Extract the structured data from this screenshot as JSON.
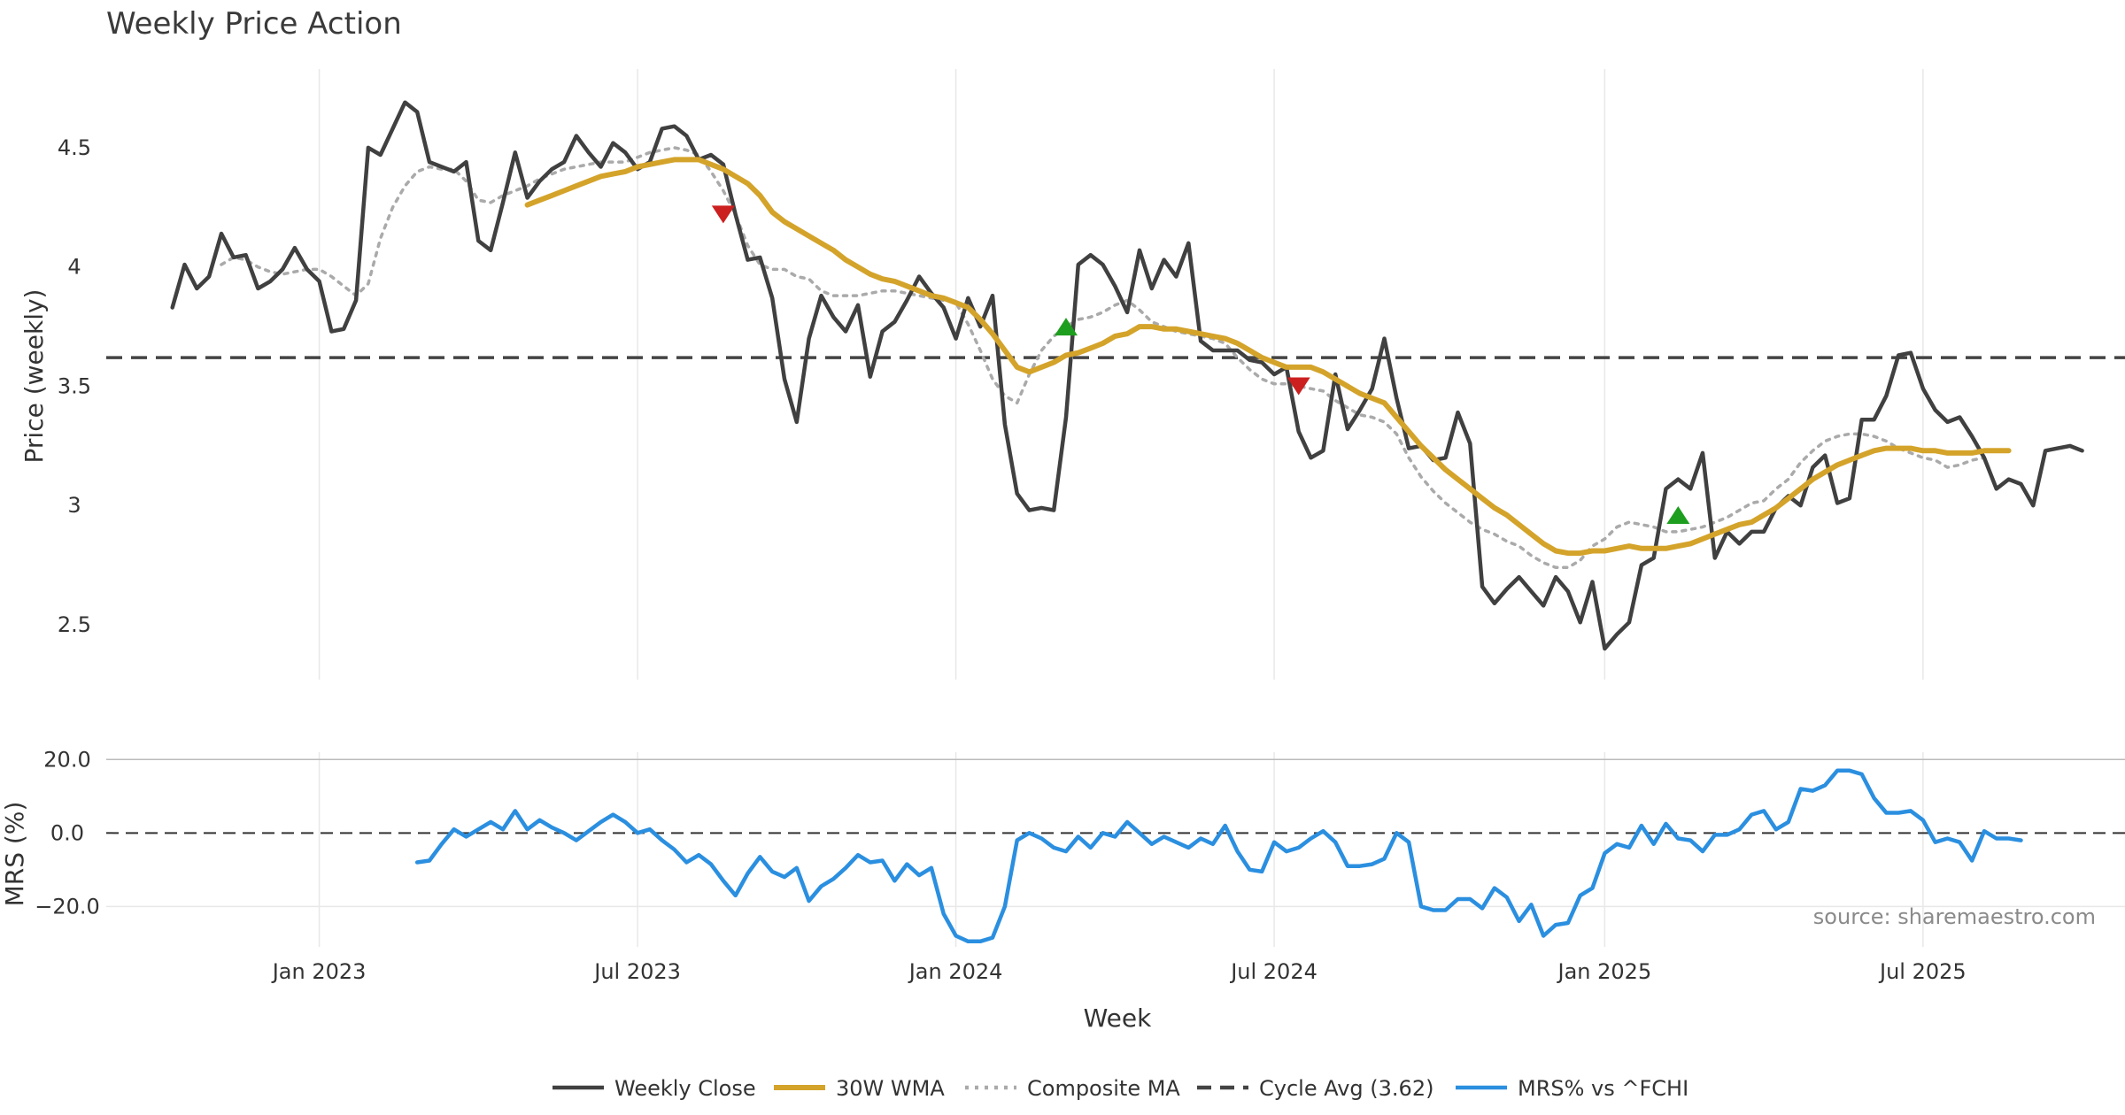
{
  "chart_data": {
    "type": "line",
    "title": "Weekly Price Action",
    "xlabel": "Week",
    "source": "source: sharemaestro.com",
    "colors": {
      "weekly_close": "#404040",
      "wma": "#d4a32a",
      "composite": "#aaaaaa",
      "cycle": "#444444",
      "mrs": "#2b8fe0",
      "sell": "#cc1f1f",
      "buy": "#1e9e1e"
    },
    "x_ticks": [
      {
        "week": 12,
        "label": "Jan 2023"
      },
      {
        "week": 38,
        "label": "Jul 2023"
      },
      {
        "week": 64,
        "label": "Jan 2024"
      },
      {
        "week": 90,
        "label": "Jul 2024"
      },
      {
        "week": 117,
        "label": "Jan 2025"
      },
      {
        "week": 143,
        "label": "Jul 2025"
      }
    ],
    "x_range": [
      -5.4,
      159.5
    ],
    "price_panel": {
      "ylabel": "Price (weekly)",
      "ylim": [
        2.27,
        4.83
      ],
      "yticks": [
        {
          "value": 2.5,
          "label": "2.5"
        },
        {
          "value": 3.0,
          "label": "3"
        },
        {
          "value": 3.5,
          "label": "3.5"
        },
        {
          "value": 4.0,
          "label": "4"
        },
        {
          "value": 4.5,
          "label": "4.5"
        }
      ],
      "cycle_avg": 3.62,
      "weekly_close": [
        3.83,
        4.01,
        3.91,
        3.96,
        4.14,
        4.04,
        4.05,
        3.91,
        3.94,
        3.99,
        4.08,
        3.99,
        3.94,
        3.73,
        3.74,
        3.86,
        4.5,
        4.47,
        4.58,
        4.69,
        4.65,
        4.44,
        4.42,
        4.4,
        4.44,
        4.11,
        4.07,
        4.27,
        4.48,
        4.29,
        4.36,
        4.41,
        4.44,
        4.55,
        4.48,
        4.42,
        4.52,
        4.48,
        4.41,
        4.44,
        4.58,
        4.59,
        4.55,
        4.45,
        4.47,
        4.43,
        4.22,
        4.03,
        4.04,
        3.87,
        3.53,
        3.35,
        3.7,
        3.88,
        3.79,
        3.73,
        3.84,
        3.54,
        3.73,
        3.77,
        3.86,
        3.96,
        3.89,
        3.83,
        3.7,
        3.87,
        3.75,
        3.88,
        3.34,
        3.05,
        2.98,
        2.99,
        2.98,
        3.37,
        4.01,
        4.05,
        4.01,
        3.92,
        3.81,
        4.07,
        3.91,
        4.03,
        3.96,
        4.1,
        3.69,
        3.65,
        3.65,
        3.65,
        3.61,
        3.6,
        3.55,
        3.58,
        3.31,
        3.2,
        3.23,
        3.55,
        3.32,
        3.4,
        3.49,
        3.7,
        3.45,
        3.24,
        3.25,
        3.19,
        3.2,
        3.39,
        3.26,
        2.66,
        2.59,
        2.65,
        2.7,
        2.64,
        2.58,
        2.7,
        2.64,
        2.51,
        2.68,
        2.4,
        2.46,
        2.51,
        2.75,
        2.78,
        3.07,
        3.11,
        3.07,
        3.22,
        2.78,
        2.89,
        2.84,
        2.89,
        2.89,
        2.99,
        3.04,
        3.0,
        3.16,
        3.21,
        3.01,
        3.03,
        3.36,
        3.36,
        3.46,
        3.63,
        3.64,
        3.49,
        3.4,
        3.35,
        3.37,
        3.29,
        3.2,
        3.07,
        3.11,
        3.09,
        3.0,
        3.23,
        3.24,
        3.25,
        3.23
      ],
      "wma_start": 29,
      "wma": [
        4.26,
        4.28,
        4.3,
        4.32,
        4.34,
        4.36,
        4.38,
        4.39,
        4.4,
        4.42,
        4.43,
        4.44,
        4.45,
        4.45,
        4.45,
        4.43,
        4.41,
        4.38,
        4.35,
        4.3,
        4.23,
        4.19,
        4.16,
        4.13,
        4.1,
        4.07,
        4.03,
        4.0,
        3.97,
        3.95,
        3.94,
        3.92,
        3.9,
        3.88,
        3.87,
        3.85,
        3.83,
        3.78,
        3.72,
        3.65,
        3.58,
        3.56,
        3.58,
        3.6,
        3.63,
        3.64,
        3.66,
        3.68,
        3.71,
        3.72,
        3.75,
        3.75,
        3.74,
        3.74,
        3.73,
        3.72,
        3.71,
        3.7,
        3.68,
        3.65,
        3.62,
        3.6,
        3.58,
        3.58,
        3.58,
        3.56,
        3.53,
        3.5,
        3.47,
        3.45,
        3.43,
        3.37,
        3.31,
        3.25,
        3.2,
        3.15,
        3.11,
        3.07,
        3.03,
        2.99,
        2.96,
        2.92,
        2.88,
        2.84,
        2.81,
        2.8,
        2.8,
        2.81,
        2.81,
        2.82,
        2.83,
        2.82,
        2.82,
        2.82,
        2.83,
        2.84,
        2.86,
        2.88,
        2.9,
        2.92,
        2.93,
        2.96,
        2.99,
        3.03,
        3.07,
        3.11,
        3.14,
        3.17,
        3.19,
        3.21,
        3.23,
        3.24,
        3.24,
        3.24,
        3.23,
        3.23,
        3.22,
        3.22,
        3.22,
        3.23,
        3.23,
        3.23
      ],
      "composite_start": 4,
      "composite": [
        4.01,
        4.04,
        4.03,
        4.0,
        3.98,
        3.97,
        3.98,
        3.99,
        3.99,
        3.96,
        3.92,
        3.88,
        3.93,
        4.12,
        4.25,
        4.34,
        4.4,
        4.42,
        4.41,
        4.41,
        4.36,
        4.28,
        4.27,
        4.3,
        4.32,
        4.34,
        4.37,
        4.39,
        4.41,
        4.42,
        4.43,
        4.44,
        4.44,
        4.44,
        4.46,
        4.48,
        4.49,
        4.5,
        4.49,
        4.47,
        4.4,
        4.32,
        4.22,
        4.09,
        4.01,
        3.99,
        3.99,
        3.96,
        3.95,
        3.9,
        3.88,
        3.88,
        3.88,
        3.89,
        3.9,
        3.9,
        3.89,
        3.88,
        3.87,
        3.86,
        3.85,
        3.76,
        3.65,
        3.53,
        3.46,
        3.43,
        3.55,
        3.65,
        3.71,
        3.75,
        3.78,
        3.79,
        3.81,
        3.84,
        3.86,
        3.82,
        3.77,
        3.75,
        3.73,
        3.72,
        3.71,
        3.7,
        3.68,
        3.62,
        3.57,
        3.53,
        3.51,
        3.51,
        3.5,
        3.49,
        3.48,
        3.44,
        3.41,
        3.38,
        3.37,
        3.35,
        3.3,
        3.2,
        3.12,
        3.06,
        3.01,
        2.97,
        2.93,
        2.9,
        2.88,
        2.85,
        2.83,
        2.79,
        2.76,
        2.74,
        2.74,
        2.77,
        2.83,
        2.86,
        2.91,
        2.93,
        2.92,
        2.91,
        2.89,
        2.89,
        2.9,
        2.91,
        2.93,
        2.95,
        2.98,
        3.01,
        3.02,
        3.07,
        3.11,
        3.18,
        3.23,
        3.27,
        3.29,
        3.3,
        3.3,
        3.29,
        3.27,
        3.24,
        3.22,
        3.2,
        3.19,
        3.16,
        3.17,
        3.19,
        3.2
      ],
      "sell_markers": [
        {
          "week": 45,
          "value": 4.22
        },
        {
          "week": 92,
          "value": 3.5
        }
      ],
      "buy_markers": [
        {
          "week": 73,
          "value": 3.75
        },
        {
          "week": 123,
          "value": 2.96
        }
      ]
    },
    "mrs_panel": {
      "ylabel": "MRS (%)",
      "ylim": [
        -31,
        22
      ],
      "yticks": [
        {
          "value": 20,
          "label": "20.0"
        },
        {
          "value": 0,
          "label": "0.0"
        },
        {
          "value": -20,
          "label": "−20.0"
        }
      ],
      "mrs_start": 20,
      "mrs": [
        -8,
        -7.5,
        -3,
        1,
        -1,
        1,
        3,
        1,
        6,
        1,
        3.5,
        1.5,
        0,
        -2,
        0.5,
        3,
        5,
        3,
        0,
        1,
        -2,
        -4.5,
        -8,
        -6,
        -8.5,
        -13,
        -17,
        -11,
        -6.5,
        -10.5,
        -12,
        -9.5,
        -18.5,
        -14.5,
        -12.5,
        -9.5,
        -6,
        -8,
        -7.5,
        -13,
        -8.5,
        -11.5,
        -9.5,
        -22,
        -28,
        -29.5,
        -29.5,
        -28.5,
        -20,
        -2,
        0,
        -1.5,
        -4,
        -5,
        -1,
        -4,
        0,
        -1,
        3,
        0,
        -3,
        -1,
        -2.5,
        -4,
        -1.5,
        -3,
        2,
        -5,
        -10,
        -10.5,
        -2.5,
        -5,
        -4,
        -1.5,
        0.5,
        -2.5,
        -9,
        -9,
        -8.5,
        -7,
        0,
        -2.5,
        -20,
        -21,
        -21,
        -18,
        -18,
        -20.5,
        -15,
        -17.5,
        -24,
        -19.5,
        -28,
        -25,
        -24.5,
        -17,
        -15,
        -5.5,
        -3,
        -4,
        2,
        -3,
        2.5,
        -1.5,
        -2,
        -5,
        -0.5,
        -0.5,
        1,
        5,
        6,
        1,
        3,
        12,
        11.5,
        13,
        17,
        17,
        16,
        9.5,
        5.5,
        5.5,
        6,
        3.5,
        -2.5,
        -1.5,
        -2.5,
        -7.5,
        0.5,
        -1.5,
        -1.5,
        -2
      ]
    },
    "legend": [
      {
        "key": "weekly_close",
        "label": "Weekly Close"
      },
      {
        "key": "wma",
        "label": "30W WMA"
      },
      {
        "key": "composite",
        "label": "Composite MA"
      },
      {
        "key": "cycle",
        "label": "Cycle Avg (3.62)"
      },
      {
        "key": "mrs",
        "label": "MRS% vs ^FCHI"
      }
    ]
  }
}
